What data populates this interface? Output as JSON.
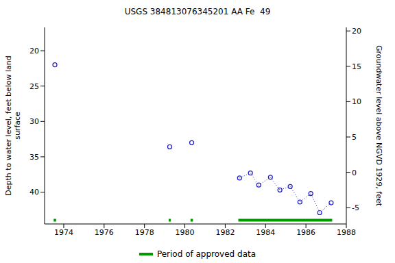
{
  "chart_data": {
    "type": "scatter",
    "title": "USGS 384813076345201 AA Fe  49",
    "y_label": "Depth to water level, feet below land surface",
    "y2_label": "Groundwater level above NGVD 1929, feet",
    "xlim": [
      1973.05,
      1988
    ],
    "xticks": [
      1974,
      1976,
      1978,
      1980,
      1982,
      1984,
      1986,
      1988
    ],
    "ylim": [
      44.5,
      16.7
    ],
    "yticks": [
      20,
      25,
      30,
      35,
      40
    ],
    "y2lim": [
      -7.3,
      20.5
    ],
    "y2ticks": [
      -5,
      0,
      5,
      10,
      15,
      20
    ],
    "series": [
      {
        "x": [
          1973.56,
          1979.25,
          1980.34
        ],
        "values": [
          22.0,
          33.6,
          33.0
        ],
        "color": "#1c1cc8",
        "marker": "circle",
        "line_style": "none"
      },
      {
        "x": [
          1982.71,
          1983.25,
          1983.66,
          1984.24,
          1984.71,
          1985.22,
          1985.7,
          1986.24,
          1986.68,
          1987.25
        ],
        "values": [
          38.0,
          37.3,
          39.0,
          37.9,
          39.7,
          39.2,
          41.4,
          40.2,
          42.9,
          41.5
        ],
        "color": "#1c1cc8",
        "marker": "circle",
        "line_style": "dotted"
      }
    ],
    "approved_periods": {
      "name": "Period of approved data",
      "color": "#009900",
      "ranges": [
        [
          1973.5,
          1973.62
        ],
        [
          1979.2,
          1979.3
        ],
        [
          1980.28,
          1980.4
        ],
        [
          1982.65,
          1987.3
        ]
      ]
    },
    "legend": "bottom"
  }
}
